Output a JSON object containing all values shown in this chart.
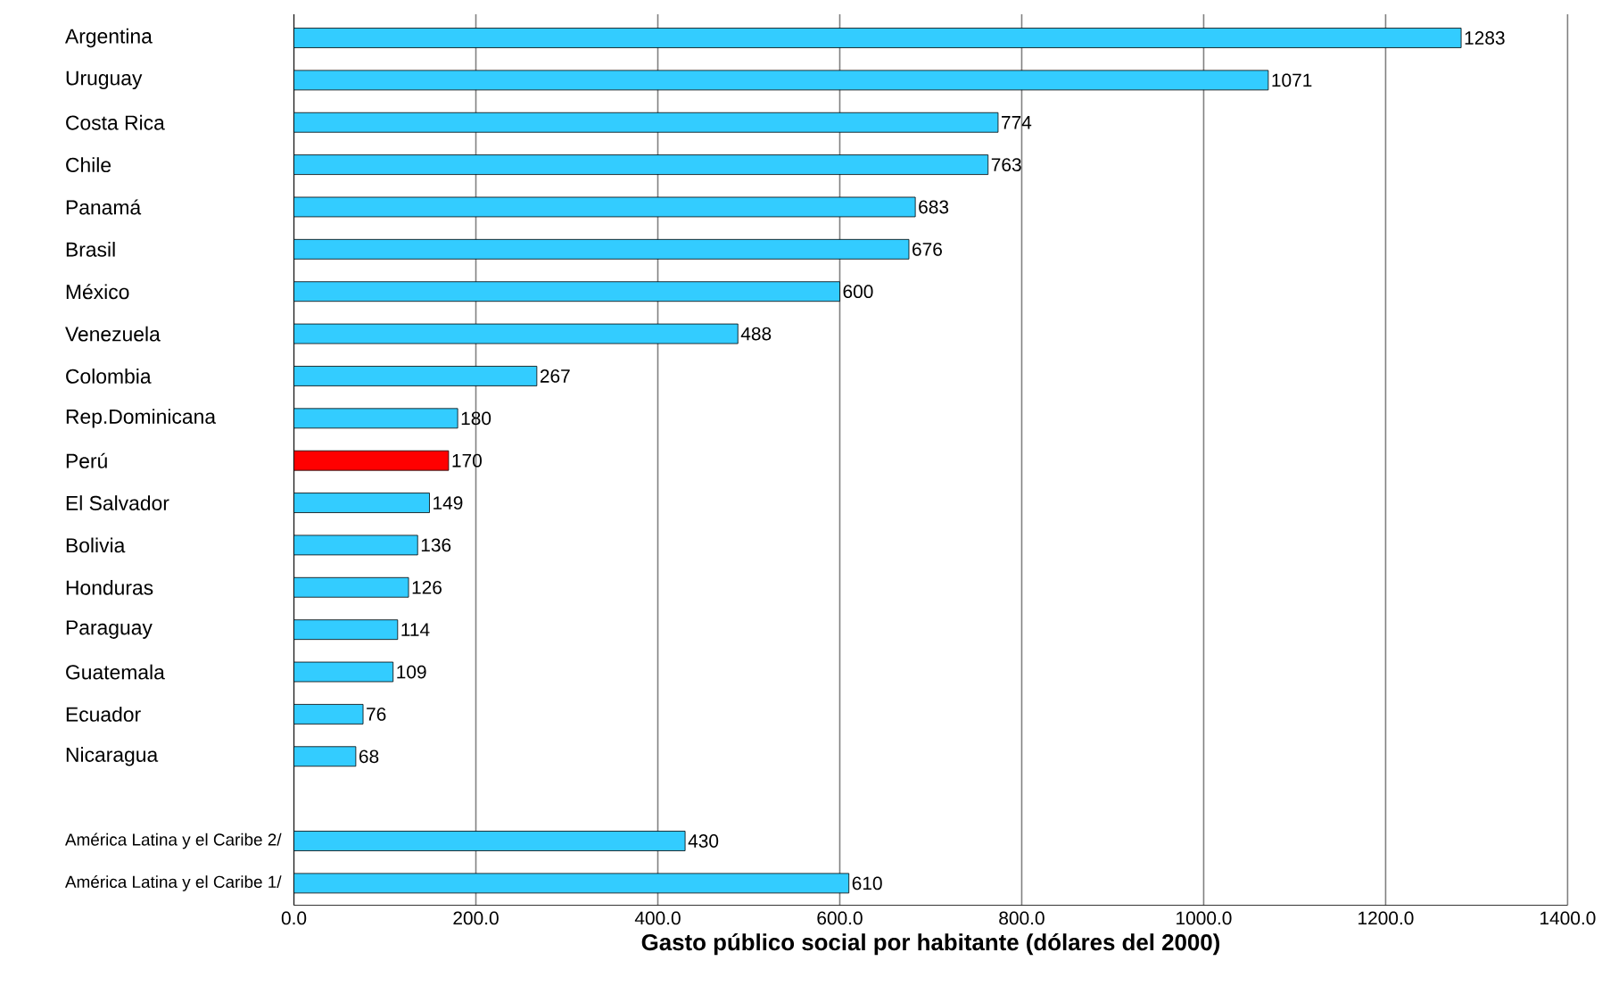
{
  "chart_data": {
    "type": "bar",
    "orientation": "horizontal",
    "xlabel": "Gasto público social por habitante (dólares del 2000)",
    "categories": [
      "Argentina",
      "Uruguay",
      "Costa Rica",
      "Chile",
      "Panamá",
      "Brasil",
      "México",
      "Venezuela",
      "Colombia",
      "Rep.Dominicana",
      "Perú",
      "El Salvador",
      "Bolivia",
      "Honduras",
      "Paraguay",
      "Guatemala",
      "Ecuador",
      "Nicaragua",
      null,
      "América Latina y el Caribe 2/",
      "América Latina y el Caribe 1/"
    ],
    "values": [
      1283,
      1071,
      774,
      763,
      683,
      676,
      600,
      488,
      267,
      180,
      170,
      149,
      136,
      126,
      114,
      109,
      76,
      68,
      null,
      430,
      610
    ],
    "colors": [
      "#33ccff",
      "#33ccff",
      "#33ccff",
      "#33ccff",
      "#33ccff",
      "#33ccff",
      "#33ccff",
      "#33ccff",
      "#33ccff",
      "#33ccff",
      "#ff0000",
      "#33ccff",
      "#33ccff",
      "#33ccff",
      "#33ccff",
      "#33ccff",
      "#33ccff",
      "#33ccff",
      "#33ccff",
      "#33ccff",
      "#33ccff"
    ],
    "data_labels": true,
    "xlim": [
      0,
      1400
    ],
    "xticks": [
      {
        "value": 0,
        "label": "0.0"
      },
      {
        "value": 200,
        "label": "200.0"
      },
      {
        "value": 400,
        "label": "400.0"
      },
      {
        "value": 600,
        "label": "600.0"
      },
      {
        "value": 800,
        "label": "800.0"
      },
      {
        "value": 1000,
        "label": "1000.0"
      },
      {
        "value": 1200,
        "label": "1200.0"
      },
      {
        "value": 1400,
        "label": "1400.0"
      }
    ],
    "grid": "x"
  }
}
